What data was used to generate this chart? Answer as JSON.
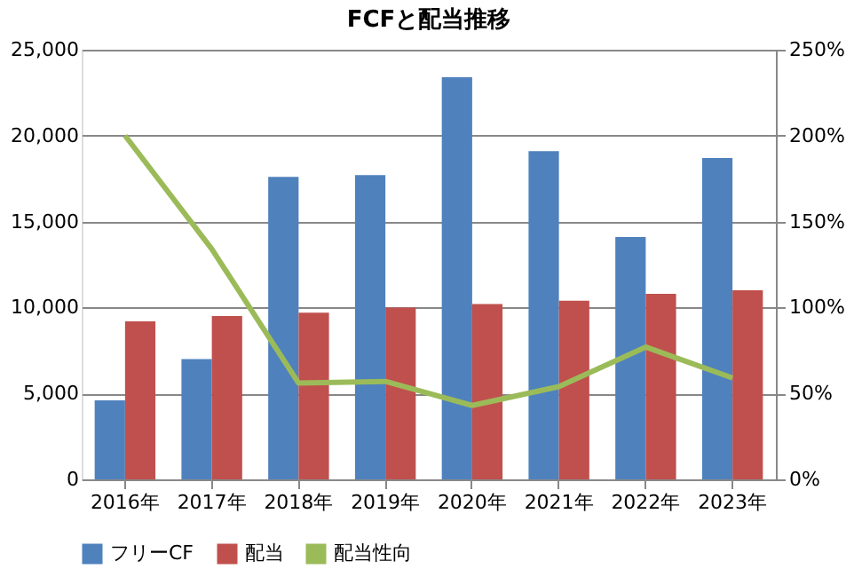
{
  "chart_data": {
    "type": "bar",
    "title": "FCFと配当推移",
    "categories": [
      "2016年",
      "2017年",
      "2018年",
      "2019年",
      "2020年",
      "2021年",
      "2022年",
      "2023年"
    ],
    "series": [
      {
        "name": "フリーCF",
        "color": "#4f81bd",
        "values": [
          4600,
          7000,
          17600,
          17700,
          23400,
          19100,
          14100,
          18700
        ]
      },
      {
        "name": "配当",
        "color": "#c0504d",
        "values": [
          9200,
          9500,
          9700,
          10000,
          10200,
          10400,
          10800,
          11000
        ]
      },
      {
        "name": "配当性向",
        "color": "#9bbb59",
        "type": "line",
        "axis": "y2",
        "values": [
          200,
          134,
          56,
          57,
          43,
          54,
          77,
          59
        ]
      }
    ],
    "ylim": [
      0,
      25000
    ],
    "yticks": [
      0,
      {
        "value": 5000,
        "label": "5,000"
      },
      {
        "value": 10000,
        "label": "10,000"
      },
      {
        "value": 15000,
        "label": "15,000"
      },
      {
        "value": 20000,
        "label": "20,000"
      },
      {
        "value": 25000,
        "label": "25,000"
      }
    ],
    "y2lim": [
      0,
      250
    ],
    "y2ticks": [
      {
        "value": 0,
        "label": "0%"
      },
      {
        "value": 50,
        "label": "50%"
      },
      {
        "value": 100,
        "label": "100%"
      },
      {
        "value": 150,
        "label": "150%"
      },
      {
        "value": 200,
        "label": "200%"
      },
      {
        "value": 250,
        "label": "250%"
      }
    ],
    "grid": "y",
    "legend": "bottom",
    "marker": "none"
  }
}
